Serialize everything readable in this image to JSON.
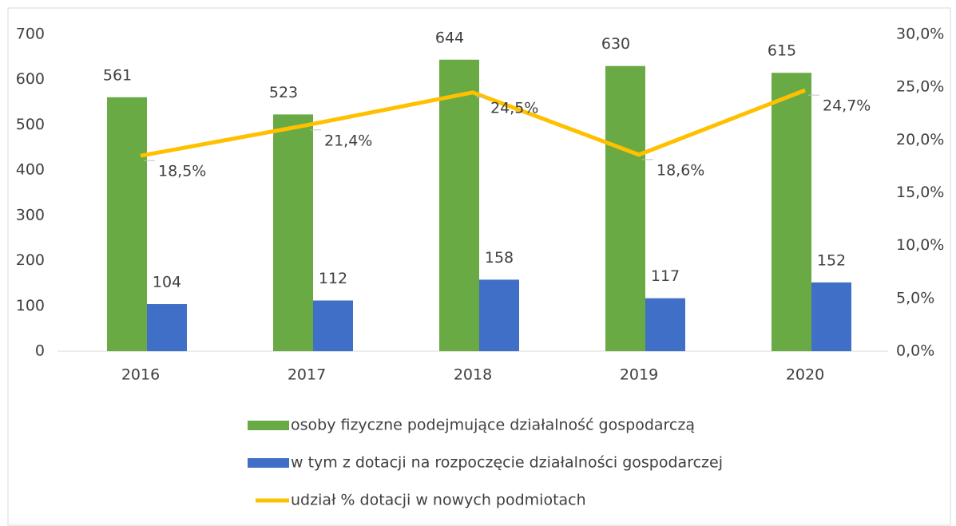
{
  "chart_data": {
    "type": "bar",
    "categories": [
      "2016",
      "2017",
      "2018",
      "2019",
      "2020"
    ],
    "series": [
      {
        "name": "osoby fizyczne podejmujące działalność gospodarczą",
        "type": "bar",
        "color": "#6aaa45",
        "values": [
          561,
          523,
          644,
          630,
          615
        ]
      },
      {
        "name": "w tym z dotacji na rozpoczęcie działalności gospodarczej",
        "type": "bar",
        "color": "#3f6fc6",
        "values": [
          104,
          112,
          158,
          117,
          152
        ]
      },
      {
        "name": "udział % dotacji w nowych podmiotach",
        "type": "line",
        "axis": "y2",
        "color": "#ffc000",
        "values": [
          18.5,
          21.4,
          24.5,
          18.6,
          24.7
        ],
        "value_labels": [
          "18,5%",
          "21,4%",
          "24,5%",
          "18,6%",
          "24,7%"
        ]
      }
    ],
    "ylim": [
      0,
      700
    ],
    "yticks": [
      0,
      100,
      200,
      300,
      400,
      500,
      600,
      700
    ],
    "y2lim": [
      0,
      30
    ],
    "y2ticks": [
      {
        "value": 0,
        "label": "0,0%"
      },
      {
        "value": 5,
        "label": "5,0%"
      },
      {
        "value": 10,
        "label": "10,0%"
      },
      {
        "value": 15,
        "label": "15,0%"
      },
      {
        "value": 20,
        "label": "20,0%"
      },
      {
        "value": 25,
        "label": "25,0%"
      },
      {
        "value": 30,
        "label": "30,0%"
      }
    ],
    "legend": "bottom"
  }
}
